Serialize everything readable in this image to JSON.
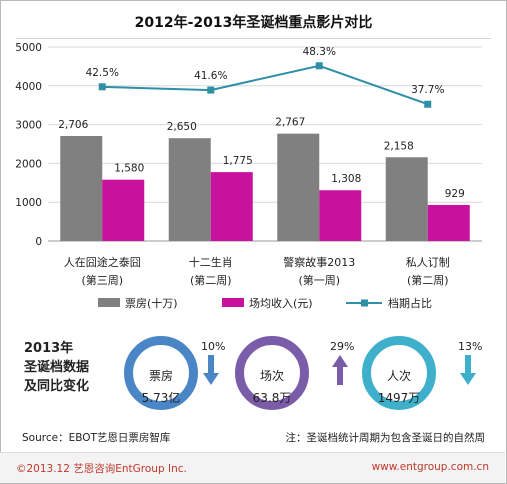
{
  "chart_data": {
    "type": "bar",
    "title": "2012年-2013年圣诞档重点影片对比",
    "categories": [
      "人在囧途之泰囧",
      "十二生肖",
      "警察故事2013",
      "私人订制"
    ],
    "category_notes": [
      "(第三周)",
      "(第二周)",
      "(第一周)",
      "(第二周)"
    ],
    "ylim": [
      0,
      5000
    ],
    "yticks": [
      0,
      1000,
      2000,
      3000,
      4000,
      5000
    ],
    "grid": true,
    "legend_position": "bottom",
    "series": [
      {
        "name": "票房(十万)",
        "type": "bar",
        "color": "#808080",
        "values": [
          2706,
          2650,
          2767,
          2158
        ],
        "labels": [
          "2,706",
          "2,650",
          "2,767",
          "2,158"
        ]
      },
      {
        "name": "场均收入(元)",
        "type": "bar",
        "color": "#c8119c",
        "values": [
          1580,
          1775,
          1308,
          929
        ],
        "labels": [
          "1,580",
          "1,775",
          "1,308",
          "929"
        ]
      },
      {
        "name": "档期占比",
        "type": "line",
        "color": "#2e8fa6",
        "values": [
          42.5,
          41.6,
          48.3,
          37.7
        ],
        "labels": [
          "42.5%",
          "41.6%",
          "48.3%",
          "37.7%"
        ]
      }
    ]
  },
  "summary": {
    "label_lines": [
      "2013年",
      "圣诞档数据",
      "及同比变化"
    ],
    "stats": [
      {
        "key": "票房",
        "value": "5.73亿",
        "change": "10%",
        "direction": "down",
        "ring_color": "#4a86c5",
        "arrow_color": "#4a86c5",
        "icon": "arrow-down-icon"
      },
      {
        "key": "场次",
        "value": "63.8万",
        "change": "29%",
        "direction": "up",
        "ring_color": "#7a5ca8",
        "arrow_color": "#7a5ca8",
        "icon": "arrow-up-icon"
      },
      {
        "key": "人次",
        "value": "1497万",
        "change": "13%",
        "direction": "down",
        "ring_color": "#3fb0cc",
        "arrow_color": "#3fb0cc",
        "icon": "arrow-down-icon"
      }
    ]
  },
  "source": "Source：EBOT艺恩日票房智库",
  "note": "注：圣诞档统计周期为包含圣诞日的自然周",
  "footer": {
    "copyright": "©2013.12  艺恩咨询EntGroup Inc.",
    "url": "www.entgroup.com.cn"
  }
}
